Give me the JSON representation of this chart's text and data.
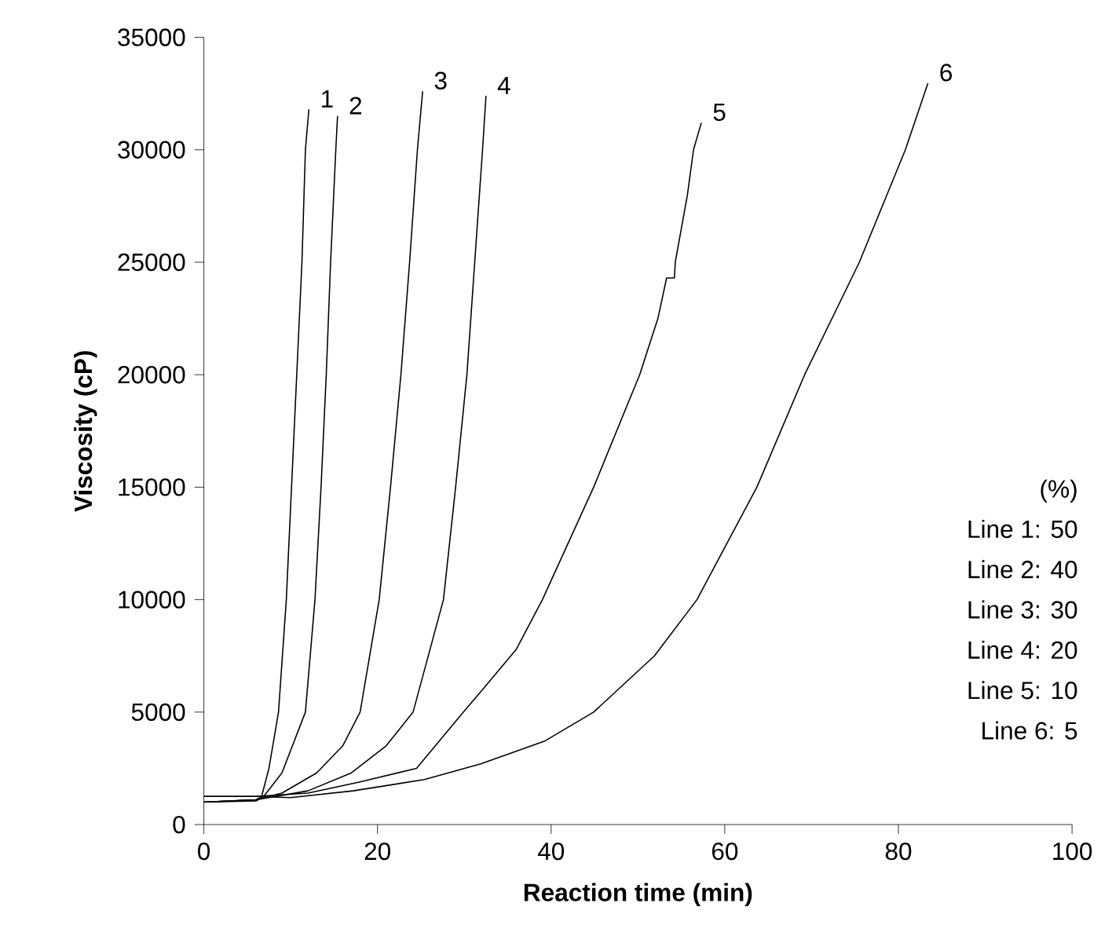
{
  "chart_data": {
    "type": "line",
    "xlabel": "Reaction time (min)",
    "ylabel": "Viscosity (cP)",
    "xlim": [
      0,
      100
    ],
    "ylim": [
      0,
      35000
    ],
    "xticks": [
      0,
      20,
      40,
      60,
      80,
      100
    ],
    "yticks": [
      0,
      5000,
      10000,
      15000,
      20000,
      25000,
      30000,
      35000
    ],
    "grid": false,
    "legend": false,
    "marker": "none",
    "line_style": "solid",
    "series": [
      {
        "name": "1",
        "color": "#000000",
        "x": [
          0,
          6,
          6.6,
          7.5,
          8.6,
          9.5,
          10.1,
          10.7,
          11.3,
          11.7,
          12.1
        ],
        "values": [
          1000,
          1050,
          1170,
          2500,
          5000,
          10000,
          15000,
          20000,
          25000,
          30000,
          31800
        ]
      },
      {
        "name": "2",
        "color": "#000000",
        "x": [
          0,
          6,
          7,
          9,
          11.7,
          12.8,
          13.5,
          14.1,
          14.6,
          15.2,
          15.4
        ],
        "values": [
          1000,
          1100,
          1300,
          2300,
          5000,
          10000,
          15000,
          20000,
          25000,
          30000,
          31500
        ]
      },
      {
        "name": "3",
        "color": "#000000",
        "x": [
          0,
          6,
          9,
          13,
          16,
          18.0,
          20.2,
          21.5,
          22.7,
          23.7,
          24.6,
          25.2
        ],
        "values": [
          1000,
          1100,
          1400,
          2300,
          3500,
          5000,
          10000,
          15000,
          20000,
          25000,
          30000,
          32600
        ]
      },
      {
        "name": "4",
        "color": "#000000",
        "x": [
          0,
          6,
          12,
          17,
          21,
          24.1,
          27.6,
          29.0,
          30.3,
          31.2,
          32.1,
          32.5
        ],
        "values": [
          1000,
          1100,
          1500,
          2300,
          3500,
          5000,
          10000,
          15000,
          20000,
          25000,
          30000,
          32400
        ]
      },
      {
        "name": "5",
        "color": "#000000",
        "x": [
          0,
          6,
          12,
          18,
          24.5,
          29.9,
          32.1,
          36,
          39.0,
          44.9,
          50.2,
          52.3,
          53.3,
          54.2,
          54.3,
          55.7,
          56.4,
          57.3
        ],
        "values": [
          1250,
          1250,
          1400,
          1900,
          2500,
          5000,
          6000,
          7800,
          10000,
          15000,
          20000,
          22500,
          24300,
          24300,
          25000,
          28000,
          30000,
          31200
        ]
      },
      {
        "name": "6",
        "color": "#000000",
        "x": [
          0,
          6,
          10,
          17.2,
          25.4,
          31.9,
          39.2,
          44.9,
          51.9,
          56.8,
          63.7,
          69.2,
          75.5,
          80.8,
          83.4
        ],
        "values": [
          1250,
          1250,
          1200,
          1500,
          2000,
          2700,
          3700,
          5000,
          7500,
          10000,
          15000,
          20000,
          25000,
          30000,
          32960
        ]
      }
    ],
    "annotations": [
      "(%)",
      "Line 1:  50",
      "Line 2:  40",
      "Line 3:  30",
      "Line 4:  20",
      "Line 5:  10",
      "Line 6:    5"
    ]
  }
}
